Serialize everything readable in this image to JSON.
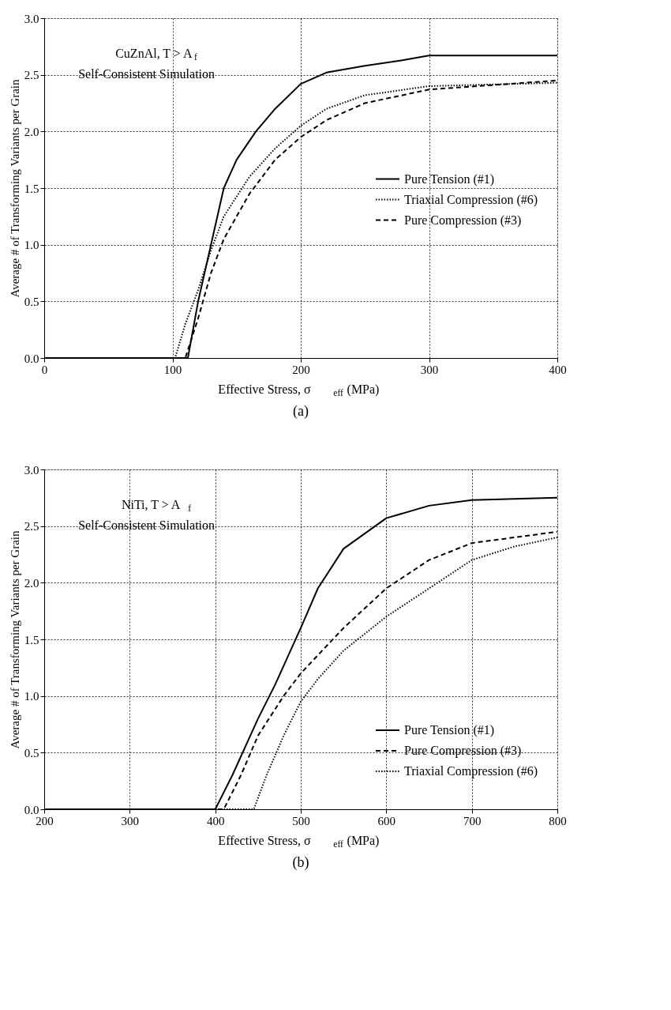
{
  "chart_data": [
    {
      "type": "line",
      "xlabel": "Effective Stress, σ$_{eff}$ (MPa)",
      "ylabel": "Average # of Transforming Variants per Grain",
      "xlim": [
        0,
        400
      ],
      "ylim": [
        0,
        3.0
      ],
      "xticks": [
        0,
        100,
        200,
        300,
        400
      ],
      "yticks": [
        {
          "value": 0,
          "label": "0.0"
        },
        {
          "value": 0.5,
          "label": "0.5"
        },
        {
          "value": 1,
          "label": "1.0"
        },
        {
          "value": 1.5,
          "label": "1.5"
        },
        {
          "value": 2,
          "label": "2.0"
        },
        {
          "value": 2.5,
          "label": "2.5"
        },
        {
          "value": 3,
          "label": "3.0"
        }
      ],
      "grid": true,
      "legend": "right",
      "annotations": [
        "CuZnAl, T > A$_{f}$",
        "Self-Consistent Simulation",
        "(a)"
      ],
      "series": [
        {
          "name": "Pure Tension (#1)",
          "color": "#000000",
          "line_style": "solid",
          "x": [
            0,
            112,
            120,
            130,
            140,
            150,
            165,
            180,
            200,
            220,
            250,
            280,
            300,
            400
          ],
          "values": [
            0,
            0,
            0.5,
            1.0,
            1.5,
            1.75,
            2.0,
            2.2,
            2.42,
            2.52,
            2.58,
            2.63,
            2.67,
            2.67
          ]
        },
        {
          "name": "Triaxial Compression (#6)",
          "color": "#000000",
          "line_style": "dotted",
          "x": [
            0,
            102,
            110,
            120,
            130,
            140,
            160,
            180,
            200,
            220,
            250,
            300,
            400
          ],
          "values": [
            0,
            0,
            0.3,
            0.6,
            0.95,
            1.25,
            1.6,
            1.85,
            2.05,
            2.2,
            2.32,
            2.4,
            2.43
          ]
        },
        {
          "name": "Pure Compression (#3)",
          "color": "#000000",
          "line_style": "dashed",
          "x": [
            0,
            110,
            120,
            130,
            140,
            160,
            180,
            200,
            220,
            250,
            300,
            400
          ],
          "values": [
            0,
            0,
            0.35,
            0.75,
            1.05,
            1.45,
            1.75,
            1.95,
            2.1,
            2.25,
            2.37,
            2.45
          ]
        }
      ]
    },
    {
      "type": "line",
      "xlabel": "Effective Stress, σ$_{eff}$ (MPa)",
      "ylabel": "Average # of Transforming Variants per Grain",
      "xlim": [
        200,
        800
      ],
      "ylim": [
        0,
        3.0
      ],
      "xticks": [
        200,
        300,
        400,
        500,
        600,
        700,
        800
      ],
      "yticks": [
        {
          "value": 0,
          "label": "0.0"
        },
        {
          "value": 0.5,
          "label": "0.5"
        },
        {
          "value": 1,
          "label": "1.0"
        },
        {
          "value": 1.5,
          "label": "1.5"
        },
        {
          "value": 2,
          "label": "2.0"
        },
        {
          "value": 2.5,
          "label": "2.5"
        },
        {
          "value": 3,
          "label": "3.0"
        }
      ],
      "grid": true,
      "legend": "bottom right",
      "annotations": [
        "NiTi, T > A$_{f}$",
        "Self-Consistent Simulation",
        "(b)"
      ],
      "series": [
        {
          "name": "Pure Tension (#1)",
          "color": "#000000",
          "line_style": "solid",
          "x": [
            200,
            400,
            420,
            450,
            470,
            500,
            520,
            550,
            600,
            650,
            700,
            800
          ],
          "values": [
            0,
            0,
            0.3,
            0.8,
            1.1,
            1.6,
            1.95,
            2.3,
            2.57,
            2.68,
            2.73,
            2.75
          ]
        },
        {
          "name": "Pure Compression (#3)",
          "color": "#000000",
          "line_style": "dashed",
          "x": [
            200,
            410,
            430,
            450,
            480,
            500,
            550,
            600,
            650,
            700,
            800
          ],
          "values": [
            0,
            0,
            0.3,
            0.65,
            1.0,
            1.2,
            1.6,
            1.95,
            2.2,
            2.35,
            2.45
          ]
        },
        {
          "name": "Triaxial Compression (#6)",
          "color": "#000000",
          "line_style": "dotted",
          "x": [
            200,
            445,
            460,
            480,
            500,
            520,
            550,
            600,
            650,
            700,
            750,
            800
          ],
          "values": [
            0,
            0,
            0.3,
            0.65,
            0.95,
            1.15,
            1.4,
            1.7,
            1.95,
            2.2,
            2.32,
            2.4
          ]
        }
      ]
    }
  ]
}
